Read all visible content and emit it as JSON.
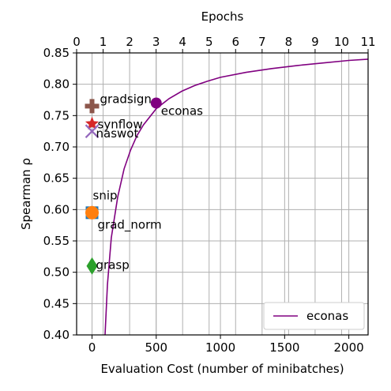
{
  "chart_data": {
    "type": "scatter",
    "xlabel": "Evaluation Cost (number of minibatches)",
    "ylabel": "Spearman ρ",
    "x2label": "Epochs",
    "xlim": [
      -120,
      2150
    ],
    "ylim": [
      0.4,
      0.85
    ],
    "x2lim": [
      0,
      11
    ],
    "grid": true,
    "legend": {
      "position": "lower-right",
      "entries": [
        "econas"
      ]
    },
    "x_ticks": [
      0,
      500,
      1000,
      1500,
      2000
    ],
    "y_ticks": [
      "0.40",
      "0.45",
      "0.50",
      "0.55",
      "0.60",
      "0.65",
      "0.70",
      "0.75",
      "0.80",
      "0.85"
    ],
    "x2_ticks": [
      0,
      1,
      2,
      3,
      4,
      5,
      6,
      7,
      8,
      9,
      10,
      11
    ],
    "points": [
      {
        "name": "gradsign",
        "x": 0,
        "y": 0.765,
        "marker": "plus",
        "color": "#8c564b"
      },
      {
        "name": "synflow",
        "x": 0,
        "y": 0.737,
        "marker": "star",
        "color": "#d62728"
      },
      {
        "name": "naswot",
        "x": 0,
        "y": 0.725,
        "marker": "x",
        "color": "#9467bd"
      },
      {
        "name": "snip",
        "x": 0,
        "y": 0.595,
        "marker": "square",
        "color": "#1f77b4"
      },
      {
        "name": "grad_norm",
        "x": 0,
        "y": 0.595,
        "marker": "circle",
        "color": "#ff7f0e"
      },
      {
        "name": "grasp",
        "x": 0,
        "y": 0.51,
        "marker": "diamond",
        "color": "#2ca02c"
      },
      {
        "name": "econas",
        "x": 500,
        "y": 0.77,
        "marker": "circle",
        "color": "#800080"
      }
    ],
    "series": [
      {
        "name": "econas",
        "color": "#800080",
        "x": [
          100,
          120,
          150,
          200,
          250,
          300,
          350,
          400,
          500,
          600,
          700,
          800,
          900,
          1000,
          1200,
          1400,
          1600,
          1800,
          2000,
          2150
        ],
        "y": [
          0.395,
          0.48,
          0.555,
          0.62,
          0.665,
          0.695,
          0.718,
          0.735,
          0.761,
          0.777,
          0.789,
          0.798,
          0.805,
          0.811,
          0.819,
          0.825,
          0.83,
          0.834,
          0.838,
          0.84
        ]
      }
    ]
  }
}
